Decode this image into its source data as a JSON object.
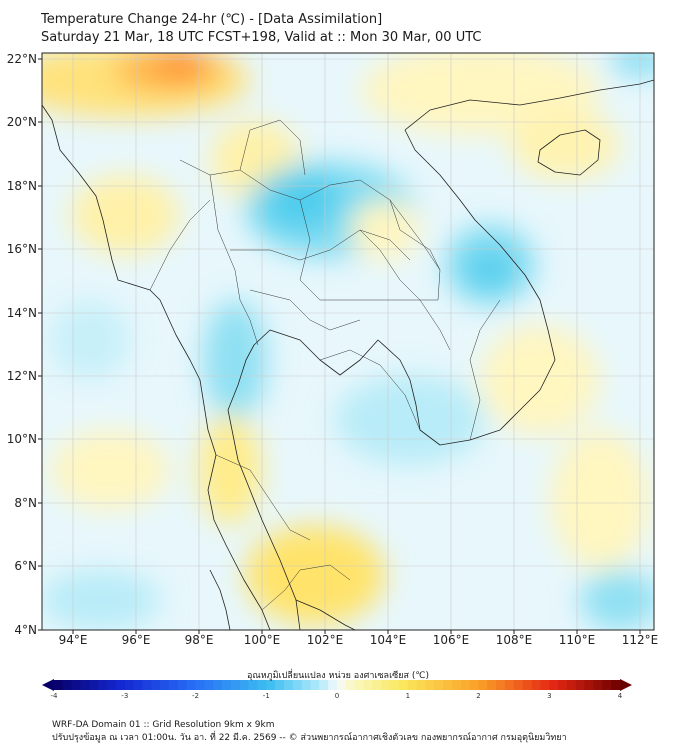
{
  "header": {
    "title": "Temperature Change 24-hr (℃) - [Data Assimilation]",
    "subtitle": "Saturday 21 Mar, 18 UTC FCST+198, Valid at :: Mon 30 Mar, 00 UTC"
  },
  "map": {
    "lon_range": [
      93,
      112.5
    ],
    "lat_range": [
      4,
      22.2
    ],
    "lon_ticks": [
      "94°E",
      "96°E",
      "98°E",
      "100°E",
      "102°E",
      "104°E",
      "106°E",
      "108°E",
      "110°E",
      "112°E"
    ],
    "lat_ticks": [
      "4°N",
      "6°N",
      "8°N",
      "10°N",
      "12°N",
      "14°N",
      "16°N",
      "18°N",
      "20°N",
      "22°N"
    ],
    "grid": true
  },
  "colorbar": {
    "title": "อุณหภูมิเปลี่ยนแปลง หน่วย องศาเซลเซียส (℃)",
    "ticks": [
      "-4",
      "-3",
      "-2",
      "-1",
      "0",
      "1",
      "2",
      "3",
      "4"
    ],
    "min": -4,
    "max": 4
  },
  "footer": {
    "line1": "WRF-DA Domain 01 :: Grid Resolution 9km x 9km",
    "line2": "ปรับปรุงข้อมูล ณ เวลา 01:00น. วัน อา. ที่ 22 มี.ค. 2569 -- © ส่วนพยากรณ์อากาศเชิงตัวเลข กองพยากรณ์อากาศ กรมอุตุนิยมวิทยา"
  }
}
